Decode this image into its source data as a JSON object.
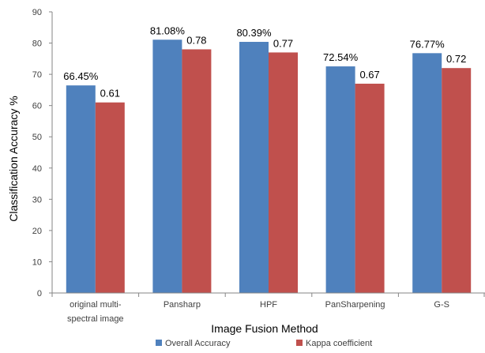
{
  "chart_data": {
    "type": "bar",
    "categories": [
      [
        "original multi-",
        "spectral image"
      ],
      [
        "Pansharp"
      ],
      [
        "HPF"
      ],
      [
        "PanSharpening"
      ],
      [
        "G-S"
      ]
    ],
    "series": [
      {
        "name": "Overall Accuracy",
        "color": "#4f81bd",
        "values": [
          66.45,
          81.08,
          80.39,
          72.54,
          76.77
        ],
        "labels": [
          "66.45%",
          "81.08%",
          "80.39%",
          "72.54%",
          "76.77%"
        ]
      },
      {
        "name": "Kappa coefficient",
        "color": "#c0504d",
        "values": [
          61,
          78,
          77,
          67,
          72
        ],
        "labels": [
          "0.61",
          "0.78",
          "0.77",
          "0.67",
          "0.72"
        ]
      }
    ],
    "xlabel": "Image Fusion Method",
    "ylabel": "Classification Accuracy %",
    "ylim": [
      0,
      90
    ],
    "yticks": [
      0,
      10,
      20,
      30,
      40,
      50,
      60,
      70,
      80,
      90
    ],
    "grid": false,
    "legend_position": "bottom"
  }
}
